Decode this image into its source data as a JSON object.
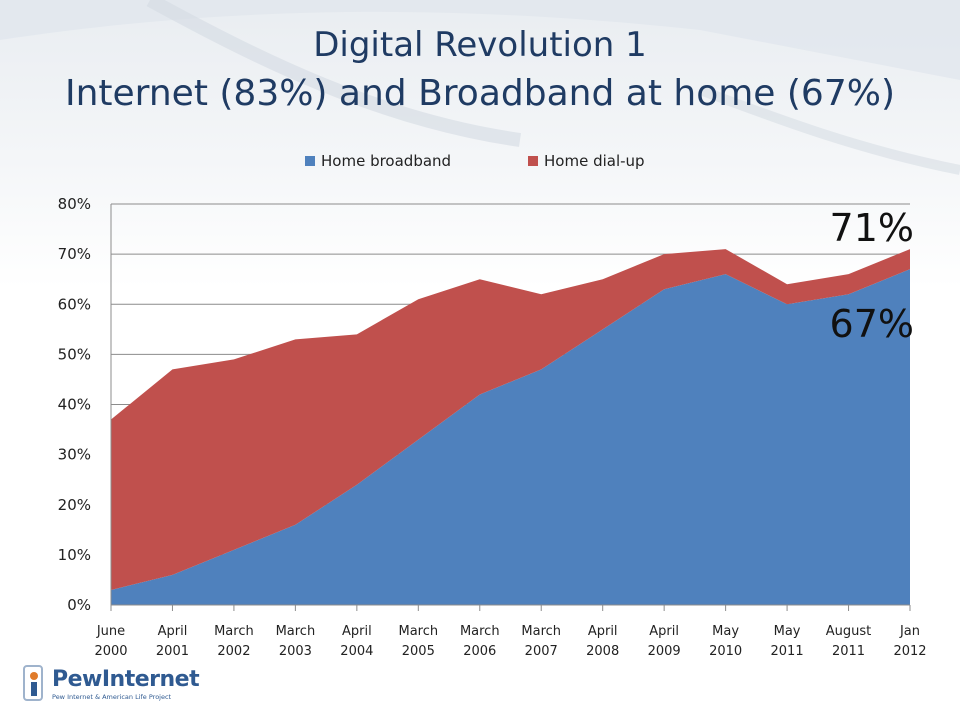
{
  "slide": {
    "title_line1": "Digital Revolution 1",
    "title_line2": "Internet (83%) and Broadband at home (67%)"
  },
  "chart_data": {
    "type": "area",
    "stacked": true,
    "title": "",
    "xlabel": "",
    "ylabel": "",
    "categories": [
      "June 2000",
      "April 2001",
      "March 2002",
      "March 2003",
      "April 2004",
      "March 2005",
      "March 2006",
      "March 2007",
      "April 2008",
      "April 2009",
      "May 2010",
      "May 2011",
      "August 2011",
      "Jan 2012"
    ],
    "series": [
      {
        "name": "Home broadband",
        "color": "#4f81bd",
        "values": [
          3,
          6,
          11,
          16,
          24,
          33,
          42,
          47,
          55,
          63,
          66,
          60,
          62,
          67
        ]
      },
      {
        "name": "Home dial-up",
        "color": "#c0504d",
        "values": [
          34,
          41,
          38,
          37,
          30,
          28,
          23,
          15,
          10,
          7,
          5,
          4,
          4,
          4
        ]
      }
    ],
    "ylim": [
      0,
      80
    ],
    "yticks": [
      0,
      10,
      20,
      30,
      40,
      50,
      60,
      70,
      80
    ],
    "ytick_format": "%",
    "grid": true,
    "legend_position": "top",
    "annotations": [
      {
        "text": "71%",
        "series": "total",
        "value": 71
      },
      {
        "text": "67%",
        "series": "Home broadband",
        "value": 67
      }
    ]
  },
  "logo": {
    "name": "PewInternet",
    "tagline": "Pew Internet & American Life Project"
  }
}
